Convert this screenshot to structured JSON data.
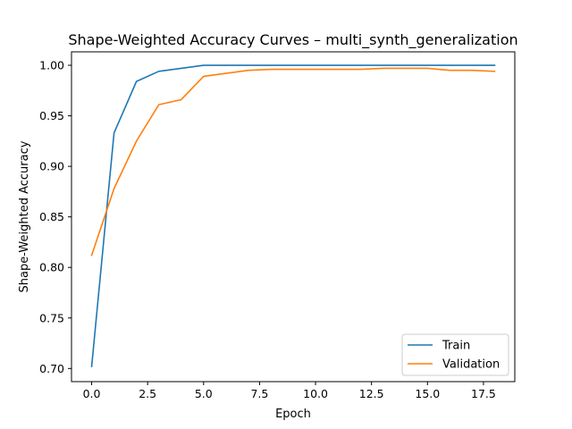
{
  "chart_data": {
    "type": "line",
    "title": "Shape-Weighted Accuracy Curves – multi_synth_generalization",
    "xlabel": "Epoch",
    "ylabel": "Shape-Weighted Accuracy",
    "xlim": [
      -0.9,
      18.9
    ],
    "ylim": [
      0.687,
      1.0133
    ],
    "xticks": [
      0.0,
      2.5,
      5.0,
      7.5,
      10.0,
      12.5,
      15.0,
      17.5
    ],
    "xtick_labels": [
      "0.0",
      "2.5",
      "5.0",
      "7.5",
      "10.0",
      "12.5",
      "15.0",
      "17.5"
    ],
    "yticks": [
      0.7,
      0.75,
      0.8,
      0.85,
      0.9,
      0.95,
      1.0
    ],
    "ytick_labels": [
      "0.70",
      "0.75",
      "0.80",
      "0.85",
      "0.90",
      "0.95",
      "1.00"
    ],
    "grid": false,
    "legend_position": "lower-right",
    "x": [
      0,
      1,
      2,
      3,
      4,
      5,
      6,
      7,
      8,
      9,
      10,
      11,
      12,
      13,
      14,
      15,
      16,
      17,
      18
    ],
    "series": [
      {
        "name": "Train",
        "color": "#1f77b4",
        "values": [
          0.702,
          0.933,
          0.984,
          0.994,
          0.997,
          1.0,
          1.0,
          1.0,
          1.0,
          1.0,
          1.0,
          1.0,
          1.0,
          1.0,
          1.0,
          1.0,
          1.0,
          1.0,
          1.0
        ]
      },
      {
        "name": "Validation",
        "color": "#ff7f0e",
        "values": [
          0.812,
          0.878,
          0.925,
          0.961,
          0.966,
          0.989,
          0.992,
          0.995,
          0.996,
          0.996,
          0.996,
          0.996,
          0.996,
          0.997,
          0.997,
          0.997,
          0.995,
          0.995,
          0.994
        ]
      }
    ]
  }
}
